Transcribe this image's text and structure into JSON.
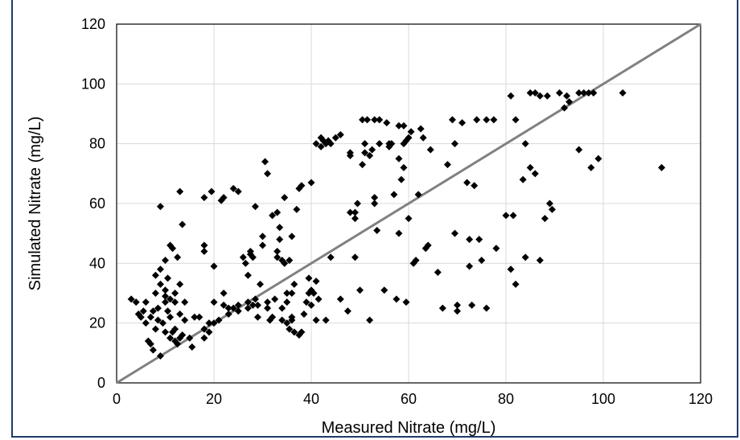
{
  "chart_data": {
    "type": "scatter",
    "title": "",
    "xlabel": "Measured Nitrate (mg/L)",
    "ylabel": "Simulated Nitrate (mg/L)",
    "xlim": [
      0,
      120
    ],
    "ylim": [
      0,
      120
    ],
    "xticks": [
      0,
      20,
      40,
      60,
      80,
      100,
      120
    ],
    "yticks": [
      0,
      20,
      40,
      60,
      80,
      100,
      120
    ],
    "grid": true,
    "marker": "diamond",
    "marker_color": "#000000",
    "reference_line": {
      "from": [
        0,
        0
      ],
      "to": [
        120,
        120
      ],
      "color": "#808080"
    },
    "points": [
      [
        3,
        28
      ],
      [
        4,
        27
      ],
      [
        4.5,
        23
      ],
      [
        5,
        22
      ],
      [
        5.5,
        24
      ],
      [
        6,
        20
      ],
      [
        6,
        27
      ],
      [
        6.5,
        14
      ],
      [
        7,
        13
      ],
      [
        7,
        22
      ],
      [
        7.5,
        24
      ],
      [
        7.5,
        11
      ],
      [
        8,
        18
      ],
      [
        8,
        30
      ],
      [
        8,
        36
      ],
      [
        8.5,
        25
      ],
      [
        8.5,
        21
      ],
      [
        9,
        33
      ],
      [
        9,
        38
      ],
      [
        9,
        9
      ],
      [
        9,
        59
      ],
      [
        9.5,
        20
      ],
      [
        10,
        17
      ],
      [
        10,
        27
      ],
      [
        10,
        31
      ],
      [
        10,
        41
      ],
      [
        10,
        29
      ],
      [
        10.5,
        35
      ],
      [
        10.5,
        24
      ],
      [
        11,
        46
      ],
      [
        11,
        15
      ],
      [
        11,
        22
      ],
      [
        11,
        28
      ],
      [
        11.5,
        45
      ],
      [
        11.5,
        17
      ],
      [
        12,
        27
      ],
      [
        12,
        14
      ],
      [
        12,
        18
      ],
      [
        12,
        30
      ],
      [
        12.5,
        42
      ],
      [
        12.5,
        13
      ],
      [
        13,
        15
      ],
      [
        13,
        23
      ],
      [
        13,
        33
      ],
      [
        13.5,
        53
      ],
      [
        13.5,
        16
      ],
      [
        13,
        64
      ],
      [
        14,
        21
      ],
      [
        14,
        27
      ],
      [
        15,
        15
      ],
      [
        15.5,
        12
      ],
      [
        16,
        22
      ],
      [
        17,
        22
      ],
      [
        18,
        15
      ],
      [
        18,
        18
      ],
      [
        18,
        44
      ],
      [
        18,
        46
      ],
      [
        18,
        62
      ],
      [
        19,
        17
      ],
      [
        19,
        20
      ],
      [
        19.5,
        64
      ],
      [
        20,
        20
      ],
      [
        20,
        27
      ],
      [
        20,
        39
      ],
      [
        21,
        21
      ],
      [
        21.5,
        61
      ],
      [
        22,
        62
      ],
      [
        22,
        26
      ],
      [
        22,
        30
      ],
      [
        23,
        23
      ],
      [
        23,
        25
      ],
      [
        24,
        25
      ],
      [
        24,
        65
      ],
      [
        25,
        24
      ],
      [
        25,
        64
      ],
      [
        25,
        26
      ],
      [
        26,
        42
      ],
      [
        26.5,
        40
      ],
      [
        27,
        25
      ],
      [
        27,
        27
      ],
      [
        27,
        36
      ],
      [
        27.5,
        44
      ],
      [
        27.5,
        43
      ],
      [
        28,
        26
      ],
      [
        28,
        42
      ],
      [
        28.5,
        28
      ],
      [
        28.5,
        59
      ],
      [
        29,
        22
      ],
      [
        29.5,
        33
      ],
      [
        29,
        26
      ],
      [
        30,
        46
      ],
      [
        30,
        49
      ],
      [
        30.5,
        74
      ],
      [
        31,
        27
      ],
      [
        31,
        70
      ],
      [
        31,
        25
      ],
      [
        31.5,
        21
      ],
      [
        32,
        22
      ],
      [
        32,
        56
      ],
      [
        32.5,
        28
      ],
      [
        33,
        42
      ],
      [
        33,
        57
      ],
      [
        33,
        44
      ],
      [
        33.5,
        48
      ],
      [
        33.5,
        52
      ],
      [
        34,
        21
      ],
      [
        34,
        25
      ],
      [
        34,
        41
      ],
      [
        34.5,
        62
      ],
      [
        34.5,
        40
      ],
      [
        35,
        30
      ],
      [
        35,
        20
      ],
      [
        35,
        27
      ],
      [
        35.5,
        18
      ],
      [
        35.5,
        41
      ],
      [
        36,
        21
      ],
      [
        36,
        22
      ],
      [
        36,
        30
      ],
      [
        36,
        49
      ],
      [
        36.5,
        17
      ],
      [
        36.5,
        33
      ],
      [
        37,
        58
      ],
      [
        37.5,
        16
      ],
      [
        37.5,
        65
      ],
      [
        38,
        17
      ],
      [
        38,
        66
      ],
      [
        38.5,
        23
      ],
      [
        39,
        27
      ],
      [
        39.5,
        30
      ],
      [
        39.5,
        35
      ],
      [
        40,
        31
      ],
      [
        40,
        26
      ],
      [
        40,
        67
      ],
      [
        40.5,
        30
      ],
      [
        41,
        21
      ],
      [
        41,
        80
      ],
      [
        41,
        34
      ],
      [
        41.5,
        28
      ],
      [
        42,
        79
      ],
      [
        42,
        82
      ],
      [
        42.5,
        81
      ],
      [
        43,
        80
      ],
      [
        43,
        21
      ],
      [
        43.5,
        81
      ],
      [
        44,
        80
      ],
      [
        44,
        42
      ],
      [
        45,
        82
      ],
      [
        46,
        83
      ],
      [
        46,
        28
      ],
      [
        47.5,
        24
      ],
      [
        48,
        57
      ],
      [
        48,
        77
      ],
      [
        48,
        76
      ],
      [
        49,
        42
      ],
      [
        49,
        55
      ],
      [
        49,
        57
      ],
      [
        49.5,
        60
      ],
      [
        50,
        31
      ],
      [
        50.5,
        88
      ],
      [
        50.5,
        73
      ],
      [
        51,
        77
      ],
      [
        51,
        80
      ],
      [
        51.5,
        88
      ],
      [
        52,
        76
      ],
      [
        52,
        21
      ],
      [
        52.5,
        78
      ],
      [
        53,
        88
      ],
      [
        53,
        60
      ],
      [
        53,
        62
      ],
      [
        53.5,
        51
      ],
      [
        54,
        88
      ],
      [
        54,
        80
      ],
      [
        55,
        31
      ],
      [
        55.5,
        87
      ],
      [
        56,
        80
      ],
      [
        56,
        79
      ],
      [
        56.5,
        80
      ],
      [
        57,
        63
      ],
      [
        57.5,
        28
      ],
      [
        58,
        75
      ],
      [
        58,
        86
      ],
      [
        58,
        50
      ],
      [
        58.5,
        68
      ],
      [
        59,
        86
      ],
      [
        59,
        72
      ],
      [
        59,
        80
      ],
      [
        59.5,
        81
      ],
      [
        59.5,
        27
      ],
      [
        60,
        55
      ],
      [
        60,
        82
      ],
      [
        60.5,
        84
      ],
      [
        61,
        40
      ],
      [
        61.5,
        41
      ],
      [
        62,
        63
      ],
      [
        62.5,
        85
      ],
      [
        63,
        82
      ],
      [
        63.5,
        45
      ],
      [
        64,
        46
      ],
      [
        64.5,
        78
      ],
      [
        66,
        37
      ],
      [
        67,
        25
      ],
      [
        68,
        73
      ],
      [
        69,
        88
      ],
      [
        69.5,
        80
      ],
      [
        69.5,
        50
      ],
      [
        70,
        24
      ],
      [
        70,
        26
      ],
      [
        71,
        87
      ],
      [
        72,
        67
      ],
      [
        72.5,
        48
      ],
      [
        72.5,
        39
      ],
      [
        73,
        26
      ],
      [
        73.5,
        66
      ],
      [
        74,
        88
      ],
      [
        74.5,
        48
      ],
      [
        75,
        41
      ],
      [
        76,
        88
      ],
      [
        76,
        25
      ],
      [
        77.5,
        88
      ],
      [
        78,
        45
      ],
      [
        80,
        56
      ],
      [
        81,
        96
      ],
      [
        81,
        38
      ],
      [
        81.5,
        56
      ],
      [
        82,
        33
      ],
      [
        82,
        88
      ],
      [
        83.5,
        68
      ],
      [
        84,
        42
      ],
      [
        84,
        80
      ],
      [
        85,
        97
      ],
      [
        85,
        72
      ],
      [
        86,
        97
      ],
      [
        86,
        70
      ],
      [
        87,
        41
      ],
      [
        87,
        96
      ],
      [
        88,
        55
      ],
      [
        88.5,
        96
      ],
      [
        89,
        60
      ],
      [
        89.5,
        58
      ],
      [
        91,
        97
      ],
      [
        92,
        92
      ],
      [
        92.5,
        96
      ],
      [
        93,
        94
      ],
      [
        95,
        97
      ],
      [
        95,
        78
      ],
      [
        96,
        97
      ],
      [
        97,
        97
      ],
      [
        97.5,
        72
      ],
      [
        98,
        97
      ],
      [
        99,
        75
      ],
      [
        104,
        97
      ],
      [
        112,
        72
      ]
    ]
  }
}
